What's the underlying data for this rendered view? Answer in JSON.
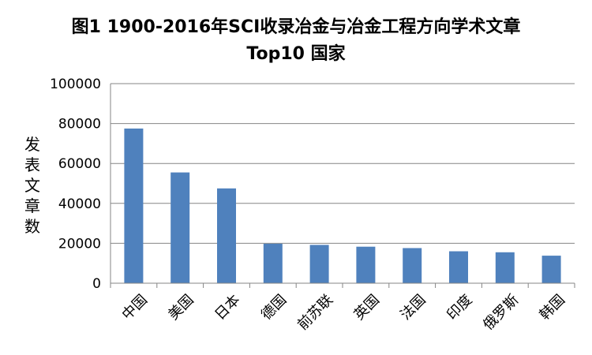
{
  "chart_data": {
    "type": "bar",
    "title": "图1 1900-2016年SCI收录冶金与冶金工程方向学术文章",
    "subtitle": "Top10 国家",
    "xlabel": "",
    "ylabel": "发表文章数",
    "categories": [
      "中国",
      "美国",
      "日本",
      "德国",
      "前苏联",
      "英国",
      "法国",
      "印度",
      "俄罗斯",
      "韩国"
    ],
    "values": [
      77500,
      55500,
      47500,
      19800,
      19200,
      18300,
      17600,
      16000,
      15500,
      13800
    ],
    "ylim": [
      0,
      100000
    ],
    "yticks": [
      0,
      20000,
      40000,
      60000,
      80000,
      100000
    ],
    "grid": true,
    "legend": "none",
    "bar_color": "#4F81BD"
  }
}
